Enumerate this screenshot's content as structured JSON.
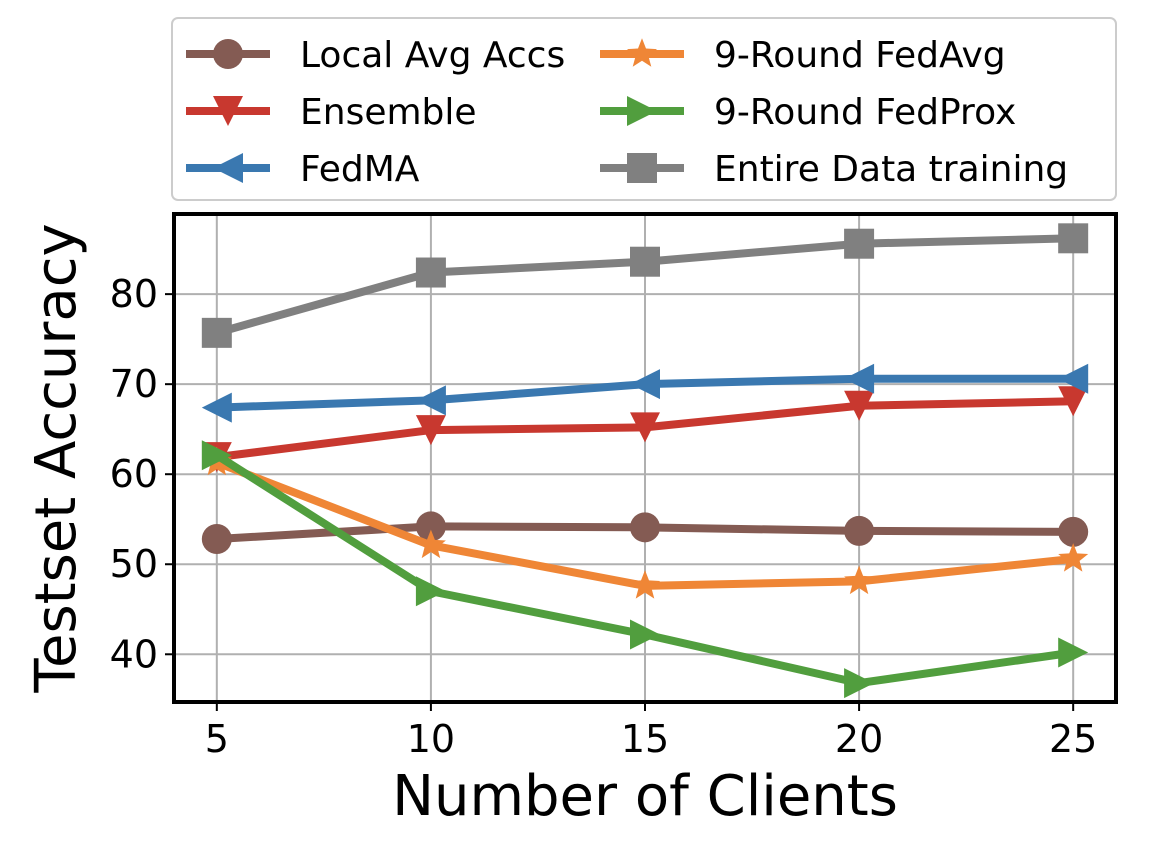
{
  "chart_data": {
    "type": "line",
    "title": "",
    "xlabel": "Number of Clients",
    "ylabel": "Testset Accuracy",
    "x": [
      5,
      10,
      15,
      20,
      25
    ],
    "xticks": [
      5,
      10,
      15,
      20,
      25
    ],
    "yticks": [
      40,
      50,
      60,
      70,
      80
    ],
    "xlim": [
      4.0,
      26.0
    ],
    "ylim": [
      34.7,
      88.9
    ],
    "grid": true,
    "legend_placement": "top (above plot), 2 columns",
    "series": [
      {
        "name": "Local Avg Accs",
        "color": "#845b53",
        "marker": "circle",
        "values": [
          52.8,
          54.2,
          54.1,
          53.7,
          53.6
        ]
      },
      {
        "name": "Ensemble",
        "color": "#c8382f",
        "marker": "triangle-down",
        "values": [
          61.9,
          64.9,
          65.2,
          67.6,
          68.1
        ]
      },
      {
        "name": "FedMA",
        "color": "#3a78b0",
        "marker": "triangle-left",
        "values": [
          67.4,
          68.2,
          70.0,
          70.6,
          70.6
        ]
      },
      {
        "name": "9-Round FedAvg",
        "color": "#ef8636",
        "marker": "star",
        "values": [
          61.3,
          52.1,
          47.6,
          48.1,
          50.6
        ]
      },
      {
        "name": "9-Round FedProx",
        "color": "#519e3e",
        "marker": "triangle-right",
        "values": [
          62.1,
          47.0,
          42.2,
          36.8,
          40.2
        ]
      },
      {
        "name": "Entire Data training",
        "color": "#808080",
        "marker": "square",
        "values": [
          75.7,
          82.4,
          83.6,
          85.6,
          86.2
        ]
      }
    ]
  }
}
